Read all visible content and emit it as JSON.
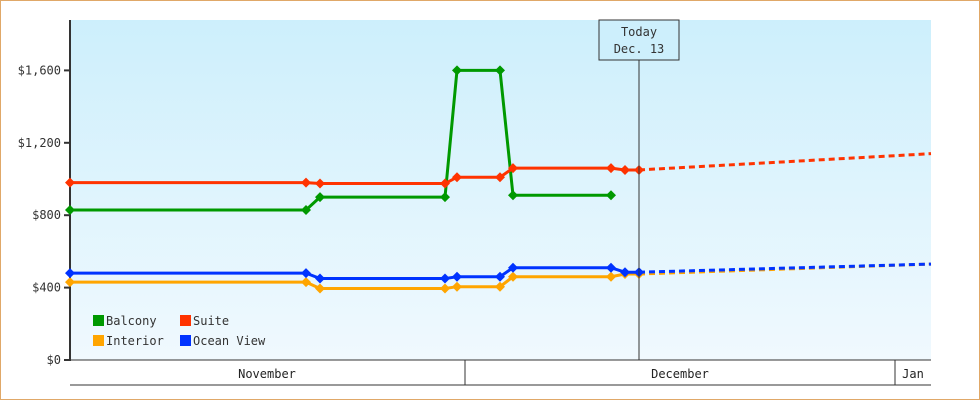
{
  "chart_data": {
    "type": "line",
    "title": "",
    "xlabel": "",
    "ylabel": "",
    "ylim": [
      0,
      1880
    ],
    "yticks": [
      "$0",
      "$400",
      "$800",
      "$1,200",
      "$1,600"
    ],
    "ytick_values": [
      0,
      400,
      800,
      1200,
      1600
    ],
    "x_months": [
      "November",
      "December",
      "Jan"
    ],
    "today_marker": {
      "line1": "Today",
      "line2": "Dec. 13"
    },
    "legend": [
      "Balcony",
      "Suite",
      "Interior",
      "Ocean View"
    ],
    "colors": {
      "Balcony": "#009900",
      "Suite": "#ff3300",
      "Interior": "#ffa500",
      "Ocean View": "#0033ff"
    },
    "series": [
      {
        "name": "Balcony",
        "points": [
          [
            70,
            829
          ],
          [
            306,
            829
          ],
          [
            320,
            900
          ],
          [
            445,
            900
          ],
          [
            457,
            1600
          ],
          [
            500,
            1600
          ],
          [
            513,
            910
          ],
          [
            611,
            910
          ]
        ]
      },
      {
        "name": "Suite",
        "points": [
          [
            70,
            980
          ],
          [
            306,
            980
          ],
          [
            320,
            975
          ],
          [
            445,
            975
          ],
          [
            457,
            1010
          ],
          [
            500,
            1010
          ],
          [
            513,
            1060
          ],
          [
            611,
            1060
          ],
          [
            625,
            1050
          ],
          [
            639,
            1050
          ]
        ],
        "forecast": [
          [
            639,
            1050
          ],
          [
            931,
            1140
          ]
        ]
      },
      {
        "name": "Interior",
        "points": [
          [
            70,
            430
          ],
          [
            306,
            430
          ],
          [
            320,
            395
          ],
          [
            445,
            395
          ],
          [
            457,
            405
          ],
          [
            500,
            405
          ],
          [
            513,
            460
          ],
          [
            611,
            460
          ],
          [
            625,
            475
          ],
          [
            639,
            475
          ]
        ],
        "forecast": [
          [
            639,
            475
          ],
          [
            931,
            530
          ]
        ]
      },
      {
        "name": "Ocean View",
        "points": [
          [
            70,
            480
          ],
          [
            306,
            480
          ],
          [
            320,
            450
          ],
          [
            445,
            450
          ],
          [
            457,
            460
          ],
          [
            500,
            460
          ],
          [
            513,
            510
          ],
          [
            611,
            510
          ],
          [
            625,
            485
          ],
          [
            639,
            485
          ]
        ],
        "forecast": [
          [
            639,
            485
          ],
          [
            931,
            530
          ]
        ]
      }
    ]
  }
}
